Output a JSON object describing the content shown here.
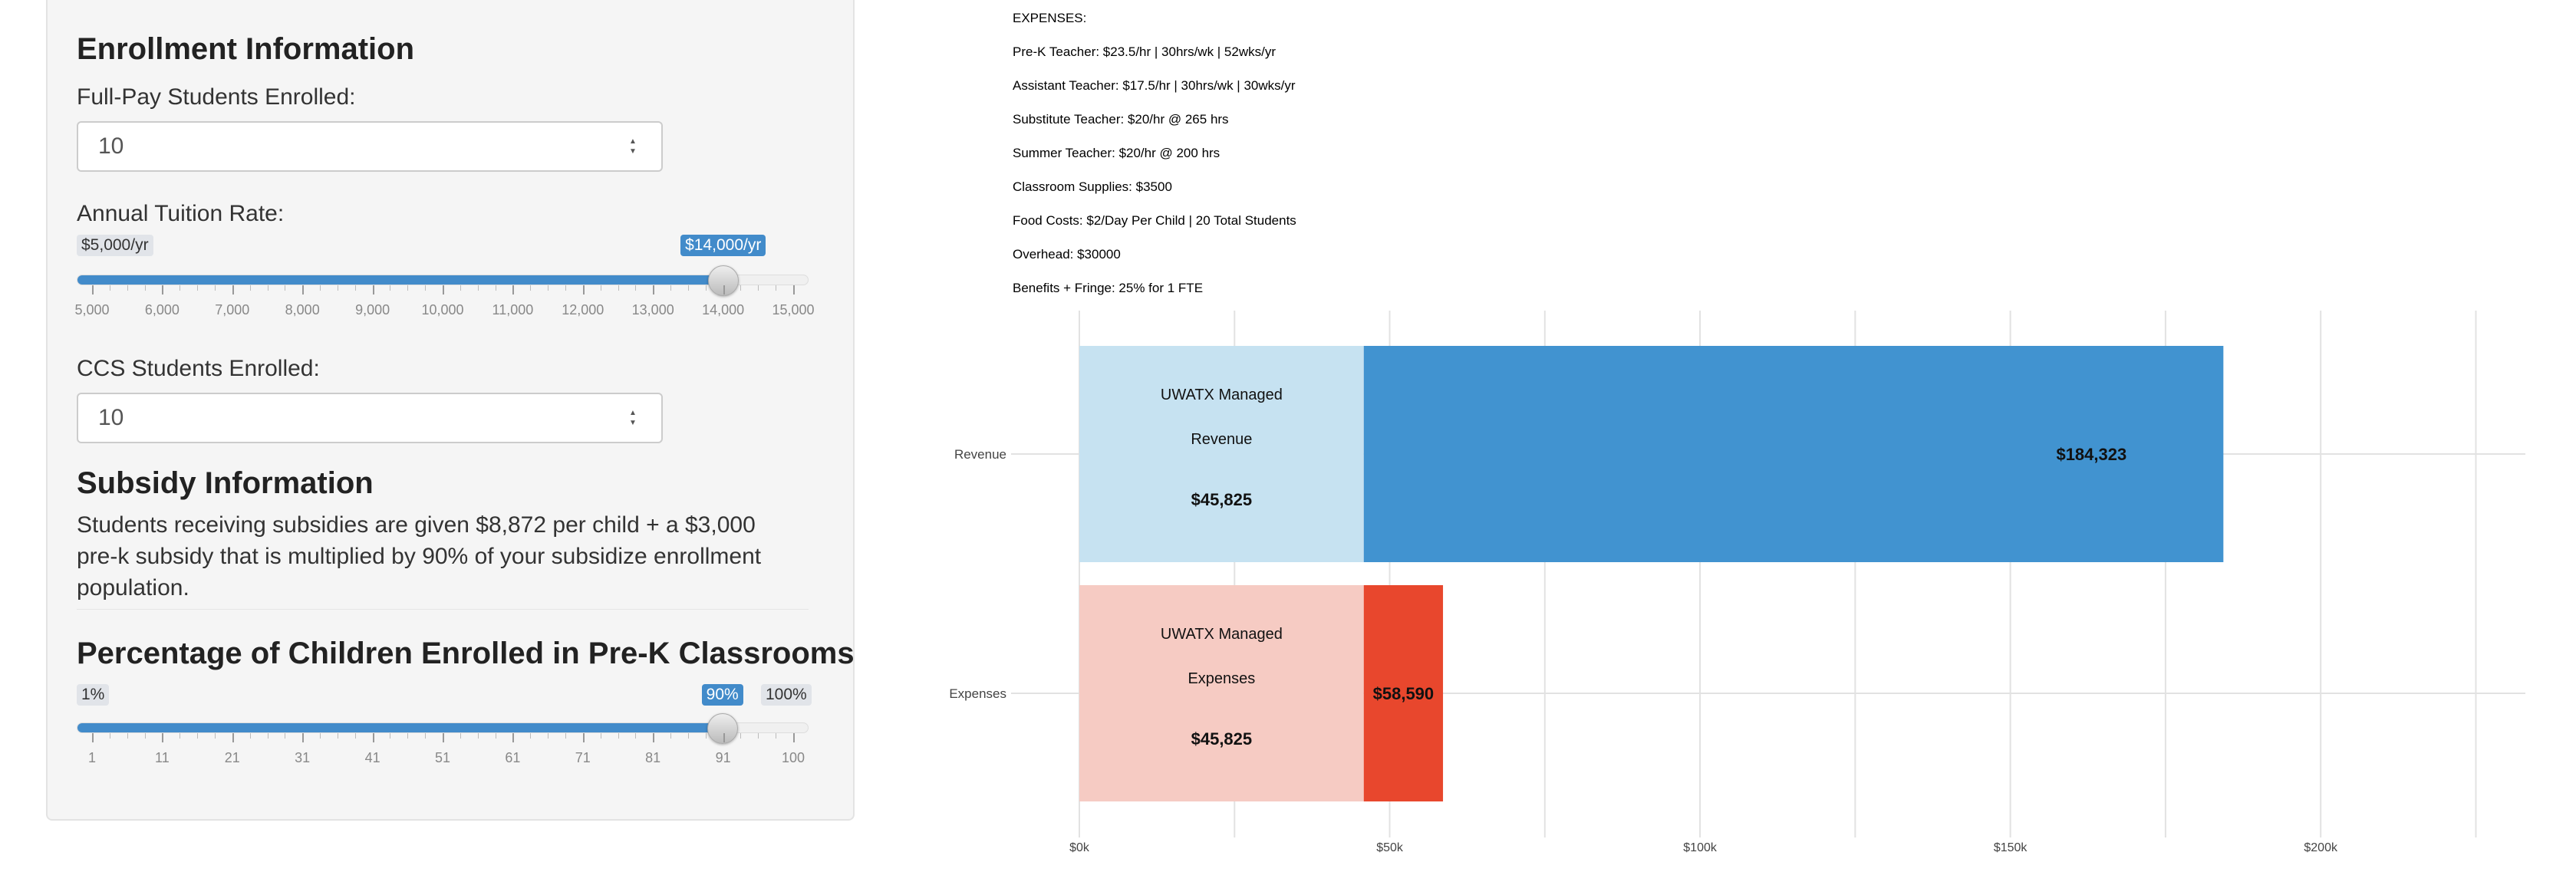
{
  "enrollment": {
    "heading": "Enrollment Information",
    "fullpay_label": "Full-Pay Students Enrolled:",
    "fullpay_value": "10",
    "tuition_label": "Annual Tuition Rate:",
    "tuition_min_tag": "$5,000/yr",
    "tuition_value_tag": "$14,000/yr",
    "tuition_min": 5000,
    "tuition_max": 15000,
    "tuition_value": 14000,
    "tuition_ticks": [
      "5,000",
      "6,000",
      "7,000",
      "8,000",
      "9,000",
      "10,000",
      "11,000",
      "12,000",
      "13,000",
      "14,000",
      "15,000"
    ],
    "ccs_label": "CCS Students Enrolled:",
    "ccs_value": "10"
  },
  "subsidy": {
    "heading": "Subsidy Information",
    "description": "Students receiving subsidies are given $8,872 per child + a $3,000 pre-k subsidy that is multiplied by 90% of your subsidize enrollment population."
  },
  "prek": {
    "heading": "Percentage of Children Enrolled in Pre-K Classrooms",
    "min_tag": "1%",
    "value_tag": "90%",
    "max_tag": "100%",
    "min": 1,
    "max": 100,
    "value": 90,
    "ticks": [
      "1",
      "11",
      "21",
      "31",
      "41",
      "51",
      "61",
      "71",
      "81",
      "91",
      "100"
    ]
  },
  "expenses_info": [
    "EXPENSES:",
    "Pre-K Teacher: $23.5/hr | 30hrs/wk | 52wks/yr",
    "Assistant Teacher: $17.5/hr | 30hrs/wk | 30wks/yr",
    "Substitute Teacher: $20/hr @ 265 hrs",
    "Summer Teacher: $20/hr  @ 200 hrs",
    "Classroom Supplies: $3500",
    "Food Costs: $2/Day Per Child | 20 Total Students",
    "Overhead: $30000",
    "Benefits + Fringe: 25% for 1 FTE"
  ],
  "chart_data": {
    "type": "bar",
    "orientation": "horizontal",
    "stacked": true,
    "categories": [
      "Revenue",
      "Expenses"
    ],
    "series": [
      {
        "segment": "UWATX Managed",
        "values": [
          45825,
          45825
        ],
        "inner_labels": [
          [
            "UWATX Managed",
            "Revenue",
            "$45,825"
          ],
          [
            "UWATX Managed",
            "Expenses",
            "$45,825"
          ]
        ],
        "colors": [
          "#c6e2f1",
          "#f6cbc3"
        ]
      },
      {
        "segment": "remainder",
        "values": [
          184323,
          58590
        ],
        "labels": [
          "$184,323",
          "$58,590"
        ],
        "colors": [
          "#4193d0",
          "#e8472d"
        ]
      }
    ],
    "x_ticks": [
      0,
      50000,
      100000,
      150000,
      200000
    ],
    "x_tick_labels": [
      "$0k",
      "$50k",
      "$100k",
      "$150k",
      "$200k"
    ],
    "xlim": [
      0,
      242000
    ],
    "grid": true
  }
}
